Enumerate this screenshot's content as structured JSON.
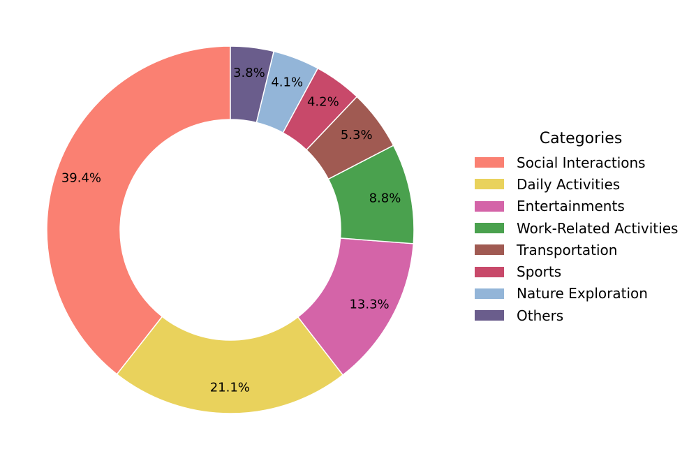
{
  "chart_data": {
    "type": "pie",
    "donut": true,
    "start_angle_deg": 90,
    "direction": "counterclockwise",
    "legend": {
      "title": "Categories",
      "placement": "right"
    },
    "slices": [
      {
        "label": "Social Interactions",
        "value": 39.4,
        "value_label": "39.4%",
        "color": "#FA8072"
      },
      {
        "label": "Daily Activities",
        "value": 21.1,
        "value_label": "21.1%",
        "color": "#E9D25C"
      },
      {
        "label": "Entertainments",
        "value": 13.3,
        "value_label": "13.3%",
        "color": "#D464A8"
      },
      {
        "label": "Work-Related Activities",
        "value": 8.8,
        "value_label": "8.8%",
        "color": "#4AA14E"
      },
      {
        "label": "Transportation",
        "value": 5.3,
        "value_label": "5.3%",
        "color": "#A05A52"
      },
      {
        "label": "Sports",
        "value": 4.2,
        "value_label": "4.2%",
        "color": "#C8496A"
      },
      {
        "label": "Nature Exploration",
        "value": 4.1,
        "value_label": "4.1%",
        "color": "#93B5D8"
      },
      {
        "label": "Others",
        "value": 3.8,
        "value_label": "3.8%",
        "color": "#6A5D8C"
      }
    ]
  }
}
